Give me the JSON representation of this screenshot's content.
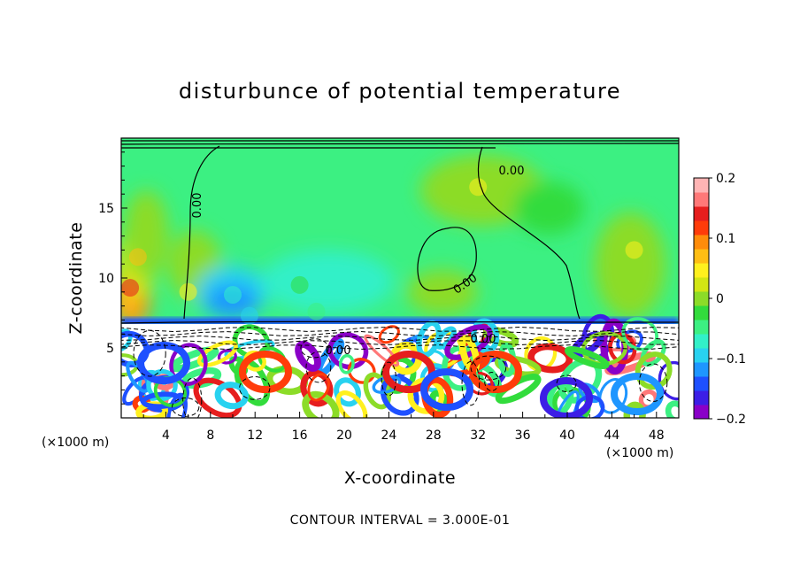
{
  "chart_data": {
    "type": "heatmap",
    "title": "disturbunce of potential temperature",
    "xlabel": "X-coordinate",
    "ylabel": "Z-coordinate",
    "x_unit": "(×1000 m)",
    "y_unit": "(×1000 m)",
    "xlim": [
      0,
      50
    ],
    "ylim": [
      0,
      20
    ],
    "x_ticks": [
      4,
      8,
      12,
      16,
      20,
      24,
      28,
      32,
      36,
      40,
      44,
      48
    ],
    "y_ticks": [
      5,
      10,
      15
    ],
    "colorbar": {
      "min": -0.2,
      "max": 0.2,
      "ticks": [
        {
          "value": 0.2,
          "label": "0.2"
        },
        {
          "value": 0.1,
          "label": "0.1"
        },
        {
          "value": 0,
          "label": "0"
        },
        {
          "value": -0.1,
          "label": "−0.1"
        },
        {
          "value": -0.2,
          "label": "−0.2"
        }
      ],
      "colors": [
        "#8a00c8",
        "#3c1ee6",
        "#1e50ff",
        "#1e96ff",
        "#28d2f0",
        "#32f0c8",
        "#3cf082",
        "#32dc3c",
        "#8cdc28",
        "#d2e614",
        "#fff01e",
        "#ffbe14",
        "#ff8c0a",
        "#ff3c0a",
        "#e61e1e",
        "#ff7878",
        "#ffb4b4"
      ]
    },
    "contour_label_value": "0.00",
    "contour_interval_text": "CONTOUR INTERVAL = 3.000E-01",
    "background_value": 0.0,
    "inversion_height": 6.8,
    "features": [
      {
        "x": 0.8,
        "z": 9.3,
        "value": 0.13
      },
      {
        "x": 1.5,
        "z": 11.5,
        "value": 0.07
      },
      {
        "x": 6.0,
        "z": 9.0,
        "value": 0.05
      },
      {
        "x": 10.0,
        "z": 8.8,
        "value": -0.06
      },
      {
        "x": 11.5,
        "z": 7.3,
        "value": -0.09
      },
      {
        "x": 17.5,
        "z": 7.6,
        "value": -0.05
      },
      {
        "x": 16.0,
        "z": 9.5,
        "value": -0.03
      },
      {
        "x": 32.0,
        "z": 16.5,
        "value": 0.04
      },
      {
        "x": 46.0,
        "z": 12.0,
        "value": 0.04
      }
    ]
  }
}
